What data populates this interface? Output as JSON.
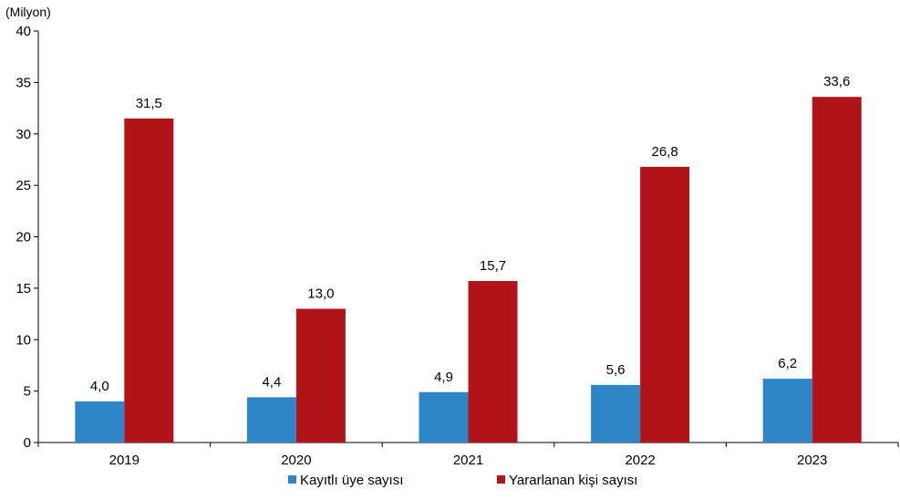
{
  "chart_data": {
    "type": "bar",
    "ylabel": "(Milyon)",
    "categories": [
      "2019",
      "2020",
      "2021",
      "2022",
      "2023"
    ],
    "series": [
      {
        "name": "Kayıtlı üye sayısı",
        "values": [
          4.0,
          4.4,
          4.9,
          5.6,
          6.2
        ],
        "labels": [
          "4,0",
          "4,4",
          "4,9",
          "5,6",
          "6,2"
        ],
        "color": "#2E86C8"
      },
      {
        "name": "Yararlanan kişi sayısı",
        "values": [
          31.5,
          13.0,
          15.7,
          26.8,
          33.6
        ],
        "labels": [
          "31,5",
          "13,0",
          "15,7",
          "26,8",
          "33,6"
        ],
        "color": "#B01318"
      }
    ],
    "ylim": [
      0,
      40
    ],
    "yticks": [
      "0",
      "5",
      "10",
      "15",
      "20",
      "25",
      "30",
      "35",
      "40"
    ],
    "grid": false,
    "legend_position": "bottom-center"
  }
}
